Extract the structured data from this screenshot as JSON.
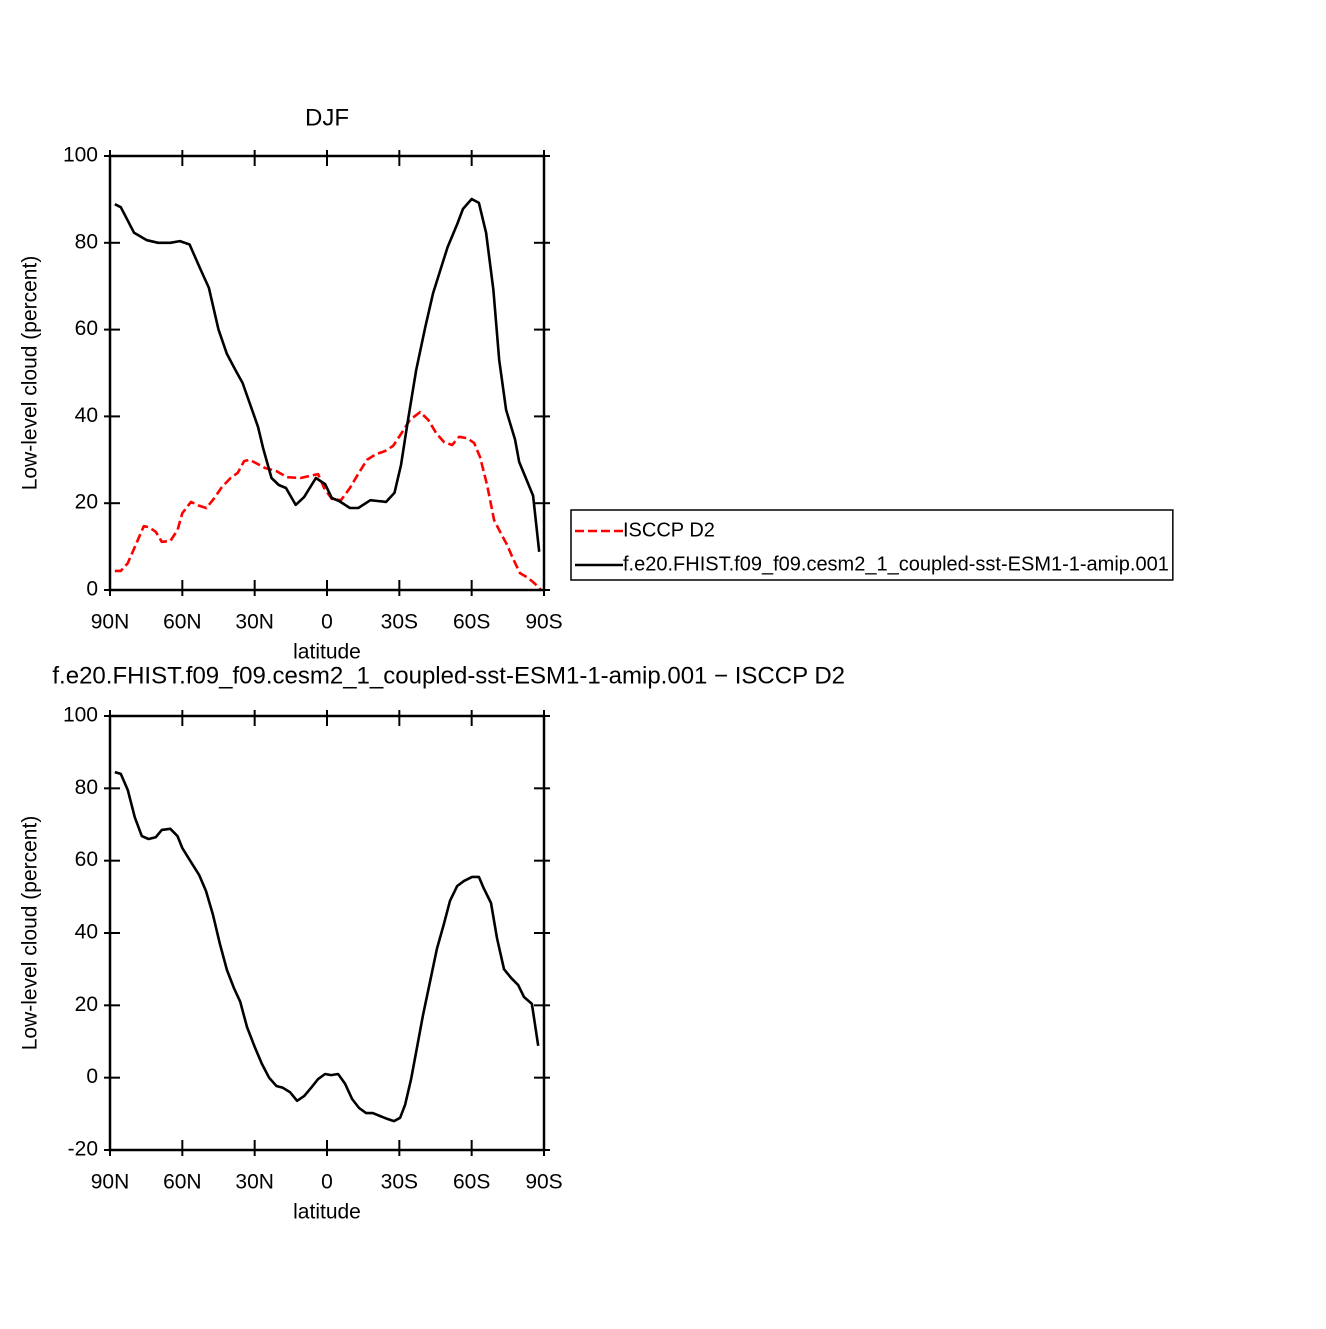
{
  "chart_data": [
    {
      "type": "line",
      "title": "DJF",
      "xlabel": "latitude",
      "ylabel": "Low-level cloud (percent)",
      "xlim": [
        90,
        -90
      ],
      "ylim": [
        0,
        100
      ],
      "xticks": [
        {
          "value": 90,
          "label": "90N"
        },
        {
          "value": 60,
          "label": "60N"
        },
        {
          "value": 30,
          "label": "30N"
        },
        0,
        {
          "value": -30,
          "label": "30S"
        },
        {
          "value": -60,
          "label": "60S"
        },
        {
          "value": -90,
          "label": "90S"
        }
      ],
      "yticks": [
        0,
        20,
        40,
        60,
        80,
        100
      ],
      "legend": "outside-right",
      "series": [
        {
          "name": "ISCCP D2",
          "color": "#ff0000",
          "linestyle": "dashed",
          "x": [
            88,
            85.5,
            82.6,
            79,
            76,
            74,
            71,
            68.5,
            65,
            62,
            60,
            56.4,
            53,
            50,
            47,
            43.6,
            40,
            37,
            34.4,
            32,
            28,
            25.7,
            21,
            16.6,
            11,
            7,
            3.7,
            1.2,
            -2,
            -5.8,
            -9.5,
            -12.9,
            -16.6,
            -20.3,
            -24,
            -27.4,
            -31,
            -34.4,
            -38.6,
            -42,
            -45.2,
            -48.5,
            -51.9,
            -54.8,
            -58,
            -61,
            -63.5,
            -66.4,
            -69.3,
            -71.8,
            -74.7,
            -77,
            -80,
            -83.4,
            -86.3,
            -88.8
          ],
          "values": [
            4.4,
            4.4,
            6.2,
            10.8,
            14.7,
            14.5,
            13.4,
            11.1,
            11.3,
            13.8,
            17.7,
            20.3,
            19.4,
            18.9,
            21,
            23.7,
            25.8,
            27,
            29.7,
            30,
            28.8,
            28.1,
            27.4,
            26,
            25.8,
            26.3,
            26.7,
            23.5,
            21,
            20.7,
            23.5,
            26.7,
            30,
            31.3,
            32,
            33.2,
            36.2,
            39.2,
            41,
            39.2,
            36.2,
            34.1,
            33.4,
            35.3,
            35,
            33.9,
            30.6,
            24.2,
            16.1,
            13.4,
            10.4,
            7.4,
            3.9,
            2.8,
            1.4,
            0
          ]
        },
        {
          "name": "f.e20.FHIST.f09_f09.cesm2_1_coupled-sst-ESM1-1-amip.001",
          "color": "#000000",
          "linestyle": "solid",
          "x": [
            88,
            85.5,
            80,
            74.7,
            70,
            65,
            61,
            57,
            52.7,
            49,
            45,
            41.5,
            38,
            35,
            32,
            28.6,
            26.5,
            23,
            20,
            17,
            13,
            9.5,
            4.6,
            0.8,
            -2,
            -5,
            -9.5,
            -13,
            -18,
            -21,
            -24.5,
            -28,
            -30.7,
            -33.6,
            -37,
            -40.7,
            -44,
            -47.3,
            -50,
            -54,
            -56.4,
            -60,
            -63,
            -66,
            -69,
            -71.4,
            -74.3,
            -78,
            -79.7,
            -83,
            -85.5,
            -88
          ],
          "values": [
            88.9,
            88.2,
            82.3,
            80.6,
            80,
            80,
            80.4,
            79.6,
            74.2,
            69.6,
            60,
            54.4,
            50.7,
            47.7,
            43,
            37.6,
            32.7,
            25.8,
            24.2,
            23.5,
            19.6,
            21.4,
            25.8,
            24.4,
            21.2,
            20.5,
            18.9,
            18.9,
            20.7,
            20.5,
            20.3,
            22.4,
            28.8,
            39.2,
            50.7,
            60.4,
            68.4,
            74.2,
            79,
            84.3,
            87.8,
            90.1,
            89.2,
            82.3,
            69.1,
            53,
            41.5,
            34.6,
            29.5,
            25.1,
            21.7,
            8.8
          ]
        }
      ]
    },
    {
      "type": "line",
      "title": "f.e20.FHIST.f09_f09.cesm2_1_coupled-sst-ESM1-1-amip.001  −  ISCCP D2",
      "xlabel": "latitude",
      "ylabel": "Low-level cloud (percent)",
      "xlim": [
        90,
        -90
      ],
      "ylim": [
        -20,
        100
      ],
      "xticks": [
        {
          "value": 90,
          "label": "90N"
        },
        {
          "value": 60,
          "label": "60N"
        },
        {
          "value": 30,
          "label": "30N"
        },
        0,
        {
          "value": -30,
          "label": "30S"
        },
        {
          "value": -60,
          "label": "60S"
        },
        {
          "value": -90,
          "label": "90S"
        }
      ],
      "yticks": [
        -20,
        0,
        20,
        40,
        60,
        80,
        100
      ],
      "series": [
        {
          "color": "#000000",
          "linestyle": "solid",
          "x": [
            88,
            85.5,
            82.6,
            79.7,
            76.8,
            74,
            71,
            68.5,
            65,
            62,
            60,
            56.4,
            53,
            50.2,
            47.3,
            44.4,
            41.5,
            38.6,
            36,
            33.2,
            30,
            27,
            24,
            21,
            18.3,
            15.4,
            12.4,
            9.5,
            6.6,
            3.7,
            0.8,
            -1.7,
            -4.6,
            -7.5,
            -10.4,
            -13.3,
            -16.2,
            -19,
            -22,
            -25,
            -27.8,
            -30.3,
            -32.4,
            -34.9,
            -37.3,
            -39.8,
            -42.7,
            -45.6,
            -48.5,
            -51,
            -54,
            -56.8,
            -60.2,
            -63,
            -65,
            -68,
            -70.5,
            -73.4,
            -76.3,
            -79.3,
            -81.7,
            -85,
            -87.6
          ],
          "values": [
            84.5,
            84,
            79.5,
            72,
            66.8,
            66,
            66.5,
            68.5,
            68.8,
            66.8,
            63.5,
            59.6,
            56,
            51.6,
            45,
            37,
            29.8,
            24.8,
            21,
            14,
            8.5,
            3.8,
            0,
            -2.3,
            -2.8,
            -4,
            -6.4,
            -5.1,
            -2.8,
            -0.4,
            1,
            0.7,
            1,
            -1.7,
            -5.9,
            -8.4,
            -9.8,
            -9.8,
            -10.6,
            -11.4,
            -12,
            -11.1,
            -7.5,
            -0.4,
            8.2,
            17.3,
            26.5,
            35.6,
            42.5,
            48.9,
            53,
            54.4,
            55.5,
            55.5,
            52.4,
            48.3,
            38.6,
            30,
            27.6,
            25.6,
            22.3,
            20.4,
            8.8
          ]
        }
      ]
    }
  ]
}
